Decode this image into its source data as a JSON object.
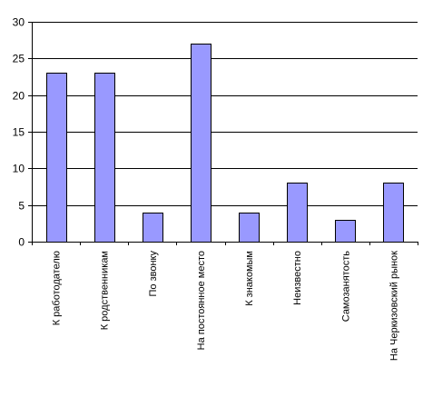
{
  "chart_data": {
    "type": "bar",
    "title": "",
    "xlabel": "",
    "ylabel": "",
    "categories": [
      "К работодателю",
      "К родственникам",
      "По звонку",
      "На постоянное место",
      "К знакомым",
      "Неизвестно",
      "Самозанятость",
      "На Черкизовский рынок"
    ],
    "values": [
      23,
      23,
      4,
      27,
      4,
      8,
      3,
      8
    ],
    "ylim": [
      0,
      30
    ],
    "yticks": [
      0,
      5,
      10,
      15,
      20,
      25,
      30
    ],
    "grid": true,
    "legend": "none",
    "colors": {
      "bar_fill": "#9999ff",
      "bar_stroke": "#000000",
      "grid": "#000000",
      "axis": "#000000"
    }
  }
}
